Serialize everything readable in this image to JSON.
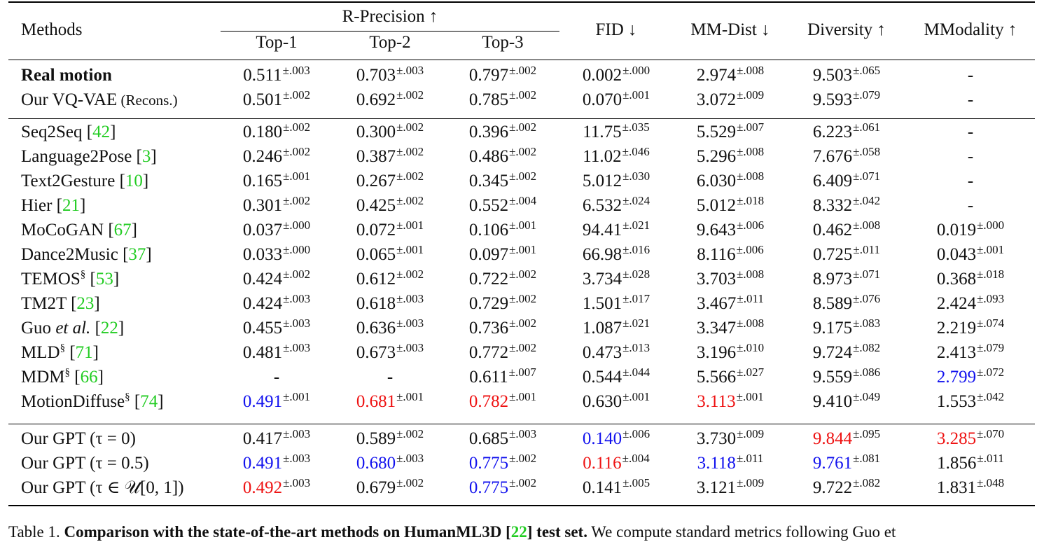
{
  "table": {
    "headers": {
      "methods": "Methods",
      "r_precision": "R-Precision ↑",
      "top1": "Top-1",
      "top2": "Top-2",
      "top3": "Top-3",
      "fid": "FID ↓",
      "mm_dist": "MM-Dist ↓",
      "diversity": "Diversity ↑",
      "mmodality": "MModality ↑"
    },
    "rows": [
      {
        "name": "Real motion",
        "cite": "",
        "sect": "",
        "extra": "",
        "bold": true,
        "group": 1,
        "cells": [
          {
            "v": "0.511",
            "e": "±.003",
            "c": ""
          },
          {
            "v": "0.703",
            "e": "±.003",
            "c": ""
          },
          {
            "v": "0.797",
            "e": "±.002",
            "c": ""
          },
          {
            "v": "0.002",
            "e": "±.000",
            "c": ""
          },
          {
            "v": "2.974",
            "e": "±.008",
            "c": ""
          },
          {
            "v": "9.503",
            "e": "±.065",
            "c": ""
          },
          {
            "v": "-",
            "e": "",
            "c": ""
          }
        ]
      },
      {
        "name": "Our VQ-VAE",
        "cite": "",
        "sect": "",
        "extra": "(Recons.)",
        "bold": false,
        "group": 1,
        "cells": [
          {
            "v": "0.501",
            "e": "±.002",
            "c": ""
          },
          {
            "v": "0.692",
            "e": "±.002",
            "c": ""
          },
          {
            "v": "0.785",
            "e": "±.002",
            "c": ""
          },
          {
            "v": "0.070",
            "e": "±.001",
            "c": ""
          },
          {
            "v": "3.072",
            "e": "±.009",
            "c": ""
          },
          {
            "v": "9.593",
            "e": "±.079",
            "c": ""
          },
          {
            "v": "-",
            "e": "",
            "c": ""
          }
        ]
      },
      {
        "name": "Seq2Seq",
        "cite": "42",
        "sect": "",
        "extra": "",
        "bold": false,
        "group": 2,
        "cells": [
          {
            "v": "0.180",
            "e": "±.002",
            "c": ""
          },
          {
            "v": "0.300",
            "e": "±.002",
            "c": ""
          },
          {
            "v": "0.396",
            "e": "±.002",
            "c": ""
          },
          {
            "v": "11.75",
            "e": "±.035",
            "c": ""
          },
          {
            "v": "5.529",
            "e": "±.007",
            "c": ""
          },
          {
            "v": "6.223",
            "e": "±.061",
            "c": ""
          },
          {
            "v": "-",
            "e": "",
            "c": ""
          }
        ]
      },
      {
        "name": "Language2Pose",
        "cite": "3",
        "sect": "",
        "extra": "",
        "bold": false,
        "group": 2,
        "cells": [
          {
            "v": "0.246",
            "e": "±.002",
            "c": ""
          },
          {
            "v": "0.387",
            "e": "±.002",
            "c": ""
          },
          {
            "v": "0.486",
            "e": "±.002",
            "c": ""
          },
          {
            "v": "11.02",
            "e": "±.046",
            "c": ""
          },
          {
            "v": "5.296",
            "e": "±.008",
            "c": ""
          },
          {
            "v": "7.676",
            "e": "±.058",
            "c": ""
          },
          {
            "v": "-",
            "e": "",
            "c": ""
          }
        ]
      },
      {
        "name": "Text2Gesture",
        "cite": "10",
        "sect": "",
        "extra": "",
        "bold": false,
        "group": 2,
        "cells": [
          {
            "v": "0.165",
            "e": "±.001",
            "c": ""
          },
          {
            "v": "0.267",
            "e": "±.002",
            "c": ""
          },
          {
            "v": "0.345",
            "e": "±.002",
            "c": ""
          },
          {
            "v": "5.012",
            "e": "±.030",
            "c": ""
          },
          {
            "v": "6.030",
            "e": "±.008",
            "c": ""
          },
          {
            "v": "6.409",
            "e": "±.071",
            "c": ""
          },
          {
            "v": "-",
            "e": "",
            "c": ""
          }
        ]
      },
      {
        "name": "Hier",
        "cite": "21",
        "sect": "",
        "extra": "",
        "bold": false,
        "group": 2,
        "cells": [
          {
            "v": "0.301",
            "e": "±.002",
            "c": ""
          },
          {
            "v": "0.425",
            "e": "±.002",
            "c": ""
          },
          {
            "v": "0.552",
            "e": "±.004",
            "c": ""
          },
          {
            "v": "6.532",
            "e": "±.024",
            "c": ""
          },
          {
            "v": "5.012",
            "e": "±.018",
            "c": ""
          },
          {
            "v": "8.332",
            "e": "±.042",
            "c": ""
          },
          {
            "v": "-",
            "e": "",
            "c": ""
          }
        ]
      },
      {
        "name": "MoCoGAN",
        "cite": "67",
        "sect": "",
        "extra": "",
        "bold": false,
        "group": 2,
        "cells": [
          {
            "v": "0.037",
            "e": "±.000",
            "c": ""
          },
          {
            "v": "0.072",
            "e": "±.001",
            "c": ""
          },
          {
            "v": "0.106",
            "e": "±.001",
            "c": ""
          },
          {
            "v": "94.41",
            "e": "±.021",
            "c": ""
          },
          {
            "v": "9.643",
            "e": "±.006",
            "c": ""
          },
          {
            "v": "0.462",
            "e": "±.008",
            "c": ""
          },
          {
            "v": "0.019",
            "e": "±.000",
            "c": ""
          }
        ]
      },
      {
        "name": "Dance2Music",
        "cite": "37",
        "sect": "",
        "extra": "",
        "bold": false,
        "group": 2,
        "cells": [
          {
            "v": "0.033",
            "e": "±.000",
            "c": ""
          },
          {
            "v": "0.065",
            "e": "±.001",
            "c": ""
          },
          {
            "v": "0.097",
            "e": "±.001",
            "c": ""
          },
          {
            "v": "66.98",
            "e": "±.016",
            "c": ""
          },
          {
            "v": "8.116",
            "e": "±.006",
            "c": ""
          },
          {
            "v": "0.725",
            "e": "±.011",
            "c": ""
          },
          {
            "v": "0.043",
            "e": "±.001",
            "c": ""
          }
        ]
      },
      {
        "name": "TEMOS",
        "cite": "53",
        "sect": "§",
        "extra": "",
        "bold": false,
        "group": 2,
        "cells": [
          {
            "v": "0.424",
            "e": "±.002",
            "c": ""
          },
          {
            "v": "0.612",
            "e": "±.002",
            "c": ""
          },
          {
            "v": "0.722",
            "e": "±.002",
            "c": ""
          },
          {
            "v": "3.734",
            "e": "±.028",
            "c": ""
          },
          {
            "v": "3.703",
            "e": "±.008",
            "c": ""
          },
          {
            "v": "8.973",
            "e": "±.071",
            "c": ""
          },
          {
            "v": "0.368",
            "e": "±.018",
            "c": ""
          }
        ]
      },
      {
        "name": "TM2T",
        "cite": "23",
        "sect": "",
        "extra": "",
        "bold": false,
        "group": 2,
        "cells": [
          {
            "v": "0.424",
            "e": "±.003",
            "c": ""
          },
          {
            "v": "0.618",
            "e": "±.003",
            "c": ""
          },
          {
            "v": "0.729",
            "e": "±.002",
            "c": ""
          },
          {
            "v": "1.501",
            "e": "±.017",
            "c": ""
          },
          {
            "v": "3.467",
            "e": "±.011",
            "c": ""
          },
          {
            "v": "8.589",
            "e": "±.076",
            "c": ""
          },
          {
            "v": "2.424",
            "e": "±.093",
            "c": ""
          }
        ]
      },
      {
        "name": "Guo",
        "cite": "22",
        "sect": "",
        "extra": "et al.",
        "bold": false,
        "group": 2,
        "cells": [
          {
            "v": "0.455",
            "e": "±.003",
            "c": ""
          },
          {
            "v": "0.636",
            "e": "±.003",
            "c": ""
          },
          {
            "v": "0.736",
            "e": "±.002",
            "c": ""
          },
          {
            "v": "1.087",
            "e": "±.021",
            "c": ""
          },
          {
            "v": "3.347",
            "e": "±.008",
            "c": ""
          },
          {
            "v": "9.175",
            "e": "±.083",
            "c": ""
          },
          {
            "v": "2.219",
            "e": "±.074",
            "c": ""
          }
        ]
      },
      {
        "name": "MLD",
        "cite": "71",
        "sect": "§",
        "extra": "",
        "bold": false,
        "group": 2,
        "cells": [
          {
            "v": "0.481",
            "e": "±.003",
            "c": ""
          },
          {
            "v": "0.673",
            "e": "±.003",
            "c": ""
          },
          {
            "v": "0.772",
            "e": "±.002",
            "c": ""
          },
          {
            "v": "0.473",
            "e": "±.013",
            "c": ""
          },
          {
            "v": "3.196",
            "e": "±.010",
            "c": ""
          },
          {
            "v": "9.724",
            "e": "±.082",
            "c": ""
          },
          {
            "v": "2.413",
            "e": "±.079",
            "c": ""
          }
        ]
      },
      {
        "name": "MDM",
        "cite": "66",
        "sect": "§",
        "extra": "",
        "bold": false,
        "group": 2,
        "cells": [
          {
            "v": "-",
            "e": "",
            "c": ""
          },
          {
            "v": "-",
            "e": "",
            "c": ""
          },
          {
            "v": "0.611",
            "e": "±.007",
            "c": ""
          },
          {
            "v": "0.544",
            "e": "±.044",
            "c": ""
          },
          {
            "v": "5.566",
            "e": "±.027",
            "c": ""
          },
          {
            "v": "9.559",
            "e": "±.086",
            "c": ""
          },
          {
            "v": "2.799",
            "e": "±.072",
            "c": "blue"
          }
        ]
      },
      {
        "name": "MotionDiffuse",
        "cite": "74",
        "sect": "§",
        "extra": "",
        "bold": false,
        "group": 2,
        "cells": [
          {
            "v": "0.491",
            "e": "±.001",
            "c": "blue"
          },
          {
            "v": "0.681",
            "e": "±.001",
            "c": "red"
          },
          {
            "v": "0.782",
            "e": "±.001",
            "c": "red"
          },
          {
            "v": "0.630",
            "e": "±.001",
            "c": ""
          },
          {
            "v": "3.113",
            "e": "±.001",
            "c": "red"
          },
          {
            "v": "9.410",
            "e": "±.049",
            "c": ""
          },
          {
            "v": "1.553",
            "e": "±.042",
            "c": ""
          }
        ]
      },
      {
        "name": "Our GPT",
        "cite": "",
        "sect": "",
        "extra": "(τ = 0)",
        "bold": false,
        "group": 3,
        "cells": [
          {
            "v": "0.417",
            "e": "±.003",
            "c": ""
          },
          {
            "v": "0.589",
            "e": "±.002",
            "c": ""
          },
          {
            "v": "0.685",
            "e": "±.003",
            "c": ""
          },
          {
            "v": "0.140",
            "e": "±.006",
            "c": "blue"
          },
          {
            "v": "3.730",
            "e": "±.009",
            "c": ""
          },
          {
            "v": "9.844",
            "e": "±.095",
            "c": "red"
          },
          {
            "v": "3.285",
            "e": "±.070",
            "c": "red"
          }
        ]
      },
      {
        "name": "Our GPT",
        "cite": "",
        "sect": "",
        "extra": "(τ = 0.5)",
        "bold": false,
        "group": 3,
        "cells": [
          {
            "v": "0.491",
            "e": "±.003",
            "c": "blue"
          },
          {
            "v": "0.680",
            "e": "±.003",
            "c": "blue"
          },
          {
            "v": "0.775",
            "e": "±.002",
            "c": "blue"
          },
          {
            "v": "0.116",
            "e": "±.004",
            "c": "red"
          },
          {
            "v": "3.118",
            "e": "±.011",
            "c": "blue"
          },
          {
            "v": "9.761",
            "e": "±.081",
            "c": "blue"
          },
          {
            "v": "1.856",
            "e": "±.011",
            "c": ""
          }
        ]
      },
      {
        "name": "Our GPT",
        "cite": "",
        "sect": "",
        "extra": "(τ ∈ 𝒰[0, 1])",
        "bold": false,
        "group": 3,
        "cells": [
          {
            "v": "0.492",
            "e": "±.003",
            "c": "red"
          },
          {
            "v": "0.679",
            "e": "±.002",
            "c": ""
          },
          {
            "v": "0.775",
            "e": "±.002",
            "c": "blue"
          },
          {
            "v": "0.141",
            "e": "±.005",
            "c": ""
          },
          {
            "v": "3.121",
            "e": "±.009",
            "c": ""
          },
          {
            "v": "9.722",
            "e": "±.082",
            "c": ""
          },
          {
            "v": "1.831",
            "e": "±.048",
            "c": ""
          }
        ]
      }
    ]
  },
  "caption": {
    "label": "Table 1.",
    "bold_text": "Comparison with the state-of-the-art methods on HumanML3D",
    "cite": "22",
    "bold_tail": "test set.",
    "rest": "We compute standard metrics following Guo et"
  },
  "colors": {
    "best": "#ee1111",
    "second": "#1111ee",
    "citation": "#22cc22"
  }
}
